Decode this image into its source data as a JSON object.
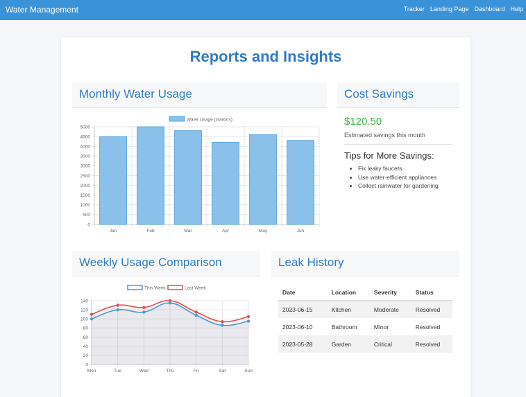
{
  "nav": {
    "brand": "Water Management",
    "links": [
      "Tracker",
      "Landing Page",
      "Dashboard",
      "Help"
    ]
  },
  "page_title": "Reports and Insights",
  "monthly": {
    "title": "Monthly Water Usage"
  },
  "savings": {
    "title": "Cost Savings",
    "amount": "$120.50",
    "desc": "Estimated savings this month",
    "tips_title": "Tips for More Savings:",
    "tips": [
      "Fix leaky faucets",
      "Use water-efficient appliances",
      "Collect rainwater for gardening"
    ]
  },
  "weekly": {
    "title": "Weekly Usage Comparison"
  },
  "leak": {
    "title": "Leak History",
    "headers": [
      "Date",
      "Location",
      "Severity",
      "Status"
    ],
    "rows": [
      [
        "2023-06-15",
        "Kitchen",
        "Moderate",
        "Resolved"
      ],
      [
        "2023-06-10",
        "Bathroom",
        "Minor",
        "Resolved"
      ],
      [
        "2023-05-28",
        "Garden",
        "Critical",
        "Resolved"
      ]
    ]
  },
  "colors": {
    "accent": "#2f7cc4",
    "nav": "#3a92d8",
    "bar_fill": "#8ac1ea",
    "bar_stroke": "#5aa6de",
    "this_week": "#4a9ad4",
    "last_week": "#d9534f",
    "savings": "#3bb04a"
  },
  "chart_data": [
    {
      "type": "bar",
      "categories": [
        "Jan",
        "Feb",
        "Mar",
        "Apr",
        "May",
        "Jun"
      ],
      "series": [
        {
          "name": "Water Usage (Gallons)",
          "values": [
            4500,
            5000,
            4800,
            4200,
            4600,
            4300
          ]
        }
      ],
      "ylim": [
        0,
        5000
      ],
      "yticks": [
        0,
        500,
        1000,
        1500,
        2000,
        2500,
        3000,
        3500,
        4000,
        4500,
        5000
      ],
      "grid": true,
      "legend": "top"
    },
    {
      "type": "line",
      "categories": [
        "Mon",
        "Tue",
        "Wed",
        "Thu",
        "Fri",
        "Sat",
        "Sun"
      ],
      "series": [
        {
          "name": "This Week",
          "values": [
            100,
            120,
            115,
            135,
            108,
            86,
            95
          ]
        },
        {
          "name": "Last Week",
          "values": [
            110,
            130,
            125,
            140,
            115,
            94,
            105
          ]
        }
      ],
      "ylim": [
        0,
        140
      ],
      "yticks": [
        0,
        20,
        40,
        60,
        80,
        100,
        120,
        140
      ],
      "grid": true,
      "legend": "top"
    }
  ]
}
